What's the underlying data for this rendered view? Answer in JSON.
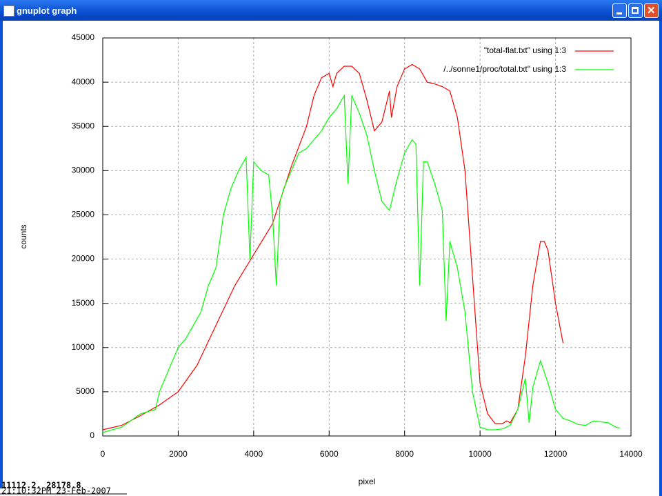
{
  "window": {
    "title": "gnuplot graph",
    "status_coords": "11112.2, 28178.8",
    "timestamp": "21:10:32PM 23-Feb-2007"
  },
  "chart_data": {
    "type": "line",
    "xlabel": "pixel",
    "ylabel": "counts",
    "xlim": [
      0,
      14000
    ],
    "xticks": [
      0,
      2000,
      4000,
      6000,
      8000,
      10000,
      12000,
      14000
    ],
    "ylim": [
      0,
      45000
    ],
    "yticks": [
      0,
      5000,
      10000,
      15000,
      20000,
      25000,
      30000,
      35000,
      40000,
      45000
    ],
    "grid": true,
    "legend": "upper right",
    "series": [
      {
        "name": "\"total-flat.txt\"  using 1:3",
        "color": "#ff0000",
        "x": [
          0,
          500,
          1000,
          1500,
          2000,
          2500,
          3000,
          3500,
          4000,
          4500,
          5000,
          5400,
          5600,
          5800,
          6000,
          6100,
          6200,
          6400,
          6600,
          6800,
          7000,
          7200,
          7400,
          7600,
          7650,
          7800,
          8000,
          8200,
          8400,
          8600,
          8800,
          9000,
          9200,
          9400,
          9600,
          9800,
          10000,
          10200,
          10400,
          10600,
          10700,
          10800,
          11000,
          11200,
          11400,
          11600,
          11700,
          11800,
          12000,
          12200
        ],
        "values": [
          700,
          1200,
          2300,
          3500,
          5000,
          8000,
          12500,
          17000,
          20500,
          24000,
          30500,
          35000,
          38500,
          40500,
          41000,
          39500,
          41000,
          41800,
          41800,
          41000,
          38000,
          34500,
          35500,
          39000,
          36000,
          39500,
          41500,
          42000,
          41500,
          40000,
          39800,
          39500,
          39000,
          36000,
          30000,
          18000,
          6000,
          2500,
          1400,
          1400,
          1700,
          1500,
          3000,
          9000,
          17000,
          22000,
          22000,
          21000,
          15000,
          10500
        ]
      },
      {
        "name": "/../sonne1/proc/total.txt\"  using 1:3",
        "color": "#00ff00",
        "x": [
          0,
          500,
          1000,
          1400,
          1500,
          1800,
          2000,
          2200,
          2400,
          2600,
          2800,
          3000,
          3200,
          3400,
          3600,
          3800,
          3900,
          4000,
          4200,
          4400,
          4500,
          4600,
          4700,
          4800,
          5000,
          5200,
          5400,
          5600,
          5800,
          6000,
          6200,
          6400,
          6500,
          6600,
          6800,
          7000,
          7200,
          7400,
          7600,
          7800,
          8000,
          8200,
          8300,
          8400,
          8500,
          8600,
          8800,
          9000,
          9100,
          9200,
          9400,
          9600,
          9800,
          10000,
          10200,
          10400,
          10600,
          10800,
          11000,
          11200,
          11300,
          11400,
          11600,
          11800,
          12000,
          12200,
          12400,
          12600,
          12800,
          13000,
          13200,
          13400,
          13600,
          13700
        ],
        "values": [
          400,
          1000,
          2500,
          3000,
          5000,
          8000,
          10000,
          11000,
          12500,
          14000,
          17000,
          19000,
          25000,
          28000,
          30000,
          31500,
          20000,
          31000,
          30000,
          29500,
          25000,
          17000,
          26500,
          28000,
          30000,
          32000,
          32500,
          33500,
          34500,
          36000,
          37000,
          38500,
          28500,
          38500,
          36500,
          34000,
          30000,
          26500,
          25500,
          29000,
          32000,
          33500,
          33000,
          17000,
          31000,
          31000,
          28500,
          25500,
          13000,
          22000,
          19000,
          14000,
          5000,
          1000,
          700,
          700,
          800,
          1200,
          3000,
          6500,
          1500,
          5500,
          8500,
          6000,
          3000,
          2000,
          1700,
          1300,
          1200,
          1700,
          1600,
          1500,
          1000,
          900
        ]
      }
    ]
  }
}
